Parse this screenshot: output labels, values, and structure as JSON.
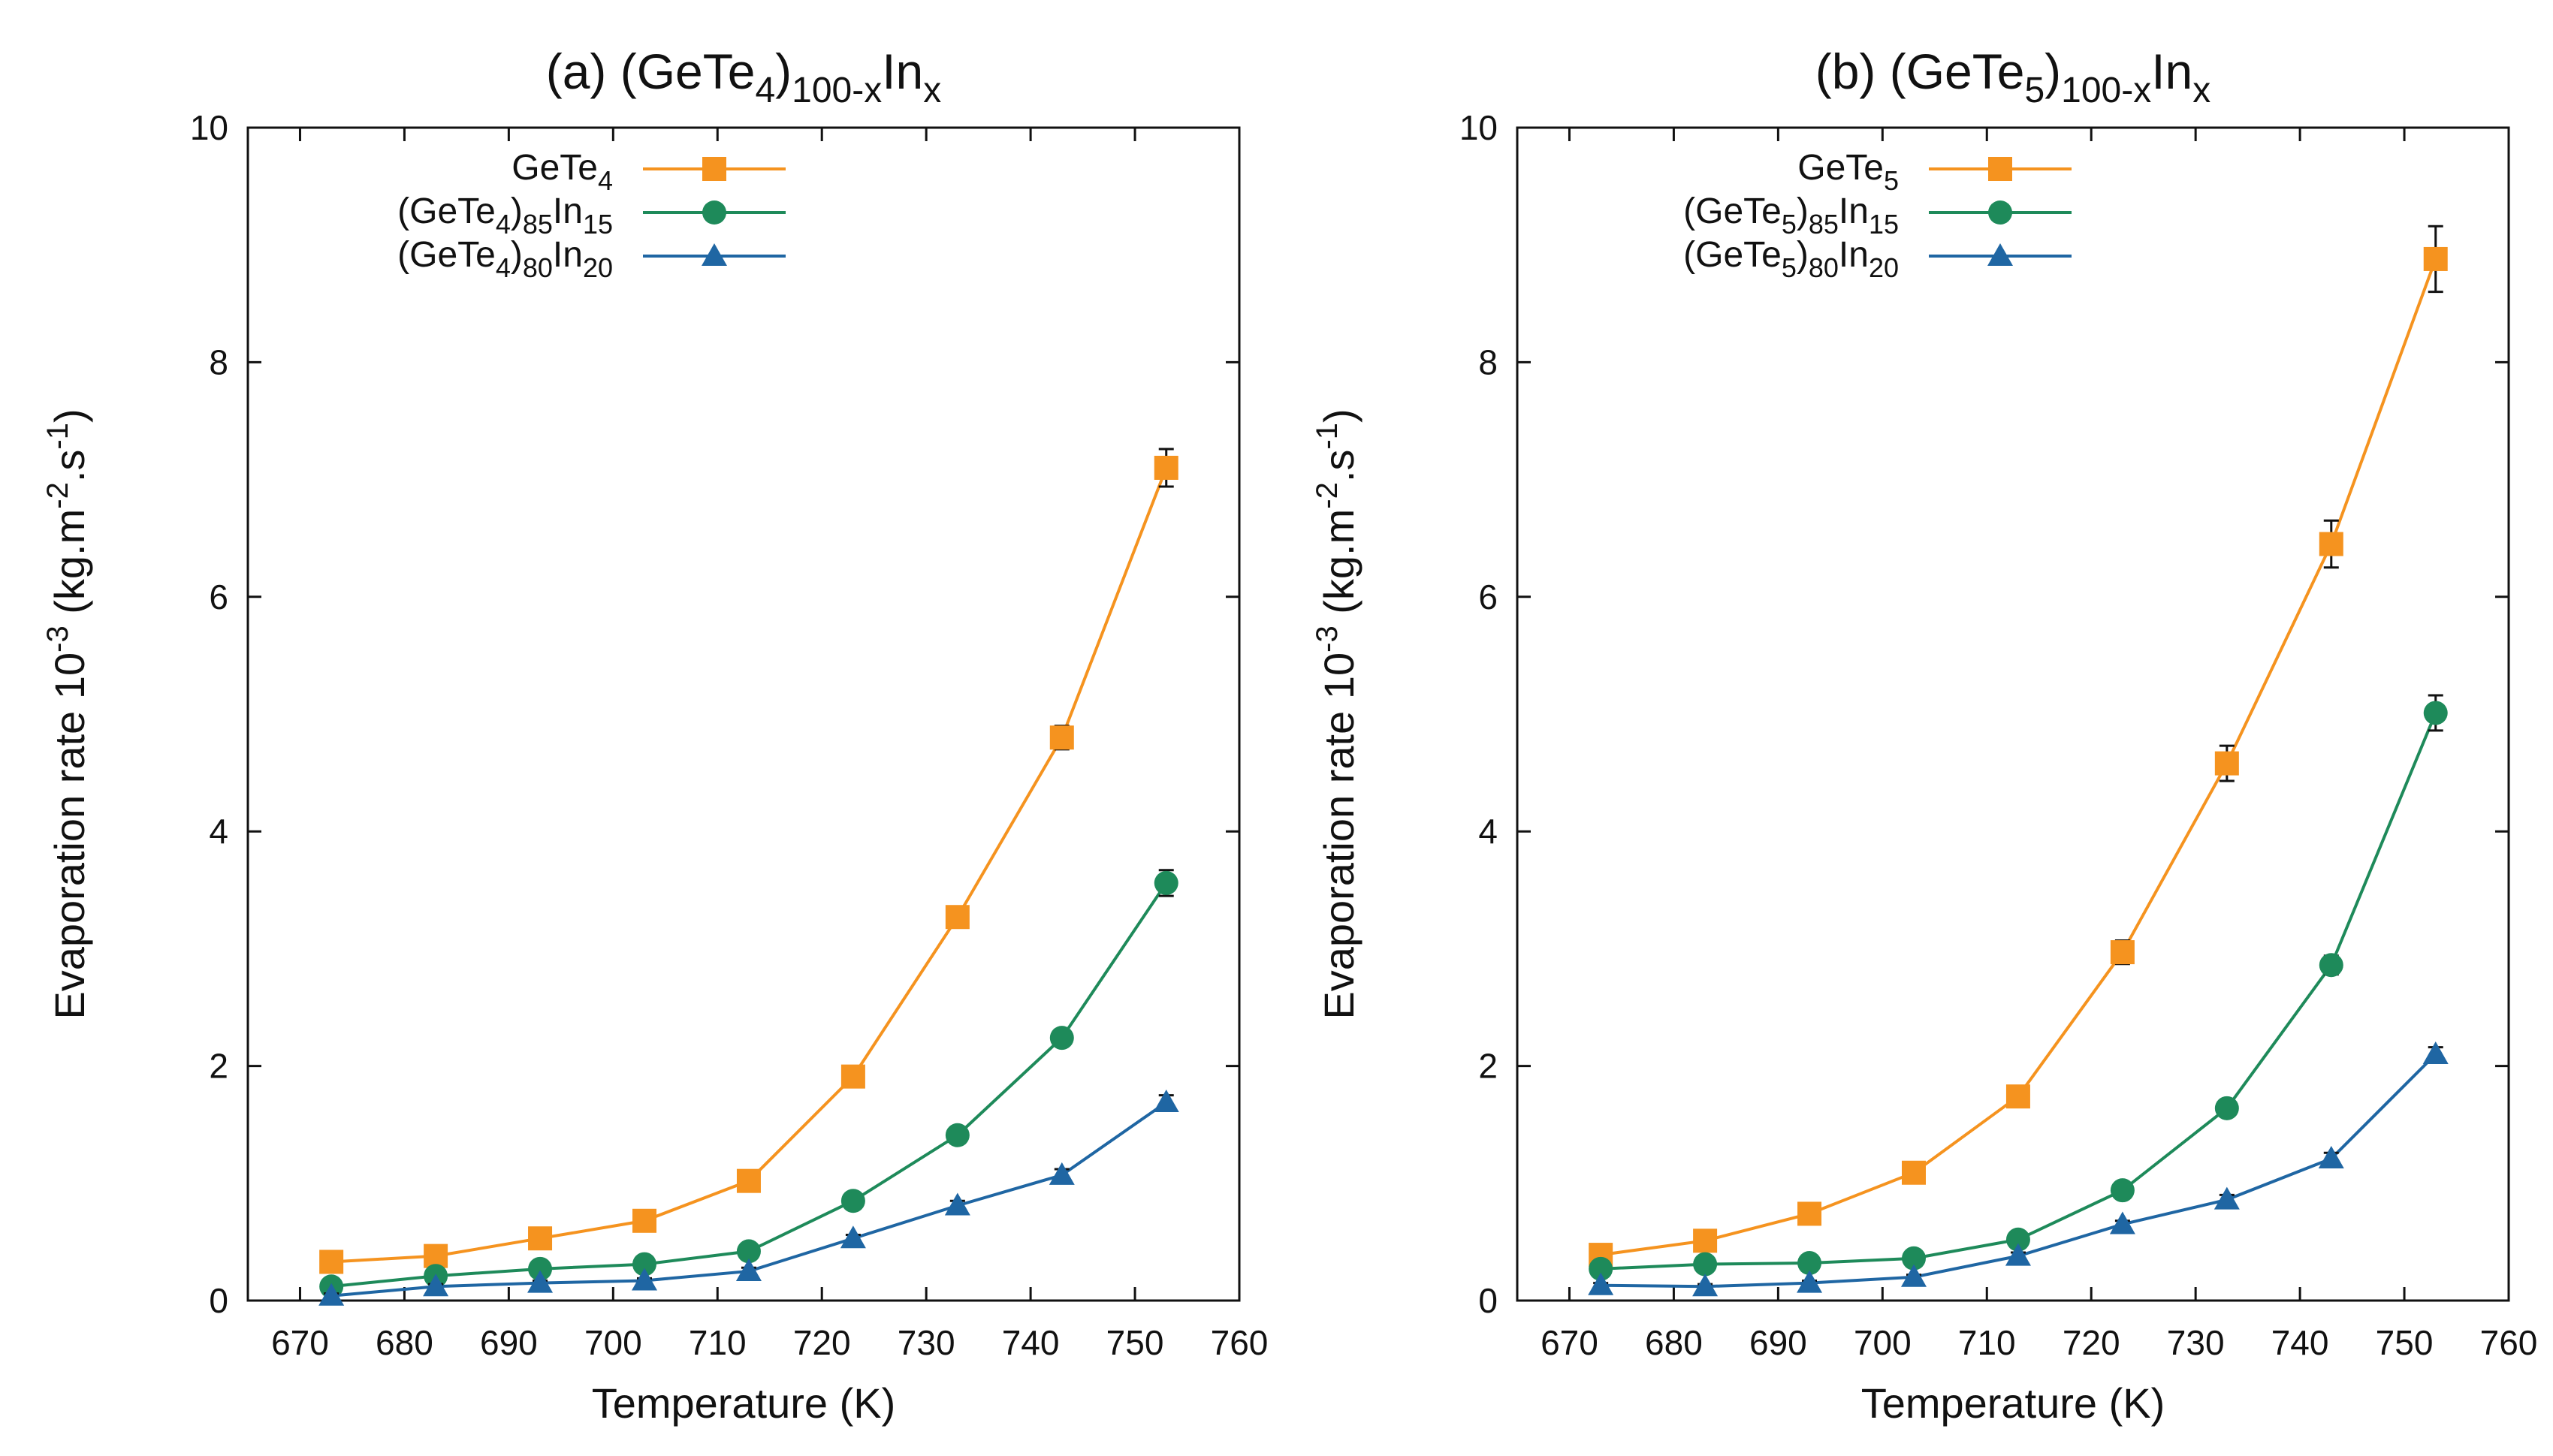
{
  "chart_data": [
    {
      "type": "line",
      "panel": "a",
      "title": {
        "prefix": "(a) (GeTe",
        "sub1": "4",
        "mid": ")",
        "sub2": "100-x",
        "base": "In",
        "sub3": "x"
      },
      "xlabel": "Temperature (K)",
      "ylabel": {
        "main": "Evaporation rate 10",
        "exp": "-3",
        "open": " (kg.m",
        "exp2": "-2",
        "dot": ".s",
        "exp3": "-1",
        "close": ")"
      },
      "xlim": [
        665,
        760
      ],
      "ylim": [
        0,
        10
      ],
      "xticks": [
        670,
        680,
        690,
        700,
        710,
        720,
        730,
        740,
        750,
        760
      ],
      "yticks": [
        0,
        2,
        4,
        6,
        8,
        10
      ],
      "x": [
        673,
        683,
        693,
        703,
        713,
        723,
        733,
        743,
        753
      ],
      "series": [
        {
          "name": {
            "base": "GeTe",
            "s1": "4",
            "rest": "",
            "s2": "",
            "tail": "",
            "s3": ""
          },
          "color": "#f5931f",
          "marker": "square",
          "values": [
            0.33,
            0.38,
            0.53,
            0.68,
            1.02,
            1.91,
            3.27,
            4.8,
            7.1
          ],
          "errors": [
            0.05,
            0.05,
            0.06,
            0.06,
            0.07,
            0.07,
            0.08,
            0.1,
            0.16
          ]
        },
        {
          "name": {
            "base": "(GeTe",
            "s1": "4",
            "rest": ")",
            "s2": "85",
            "tail": "In",
            "s3": "15"
          },
          "color": "#1e8a5a",
          "marker": "circle",
          "values": [
            0.12,
            0.21,
            0.27,
            0.31,
            0.42,
            0.85,
            1.41,
            2.24,
            3.56
          ],
          "errors": [
            0.03,
            0.03,
            0.03,
            0.03,
            0.04,
            0.05,
            0.06,
            0.07,
            0.11
          ]
        },
        {
          "name": {
            "base": "(GeTe",
            "s1": "4",
            "rest": ")",
            "s2": "80",
            "tail": "In",
            "s3": "20"
          },
          "color": "#1f66a3",
          "marker": "triangle",
          "values": [
            0.04,
            0.12,
            0.15,
            0.17,
            0.25,
            0.53,
            0.81,
            1.07,
            1.69
          ],
          "errors": [
            0.02,
            0.02,
            0.02,
            0.02,
            0.03,
            0.03,
            0.04,
            0.05,
            0.06
          ]
        }
      ]
    },
    {
      "type": "line",
      "panel": "b",
      "title": {
        "prefix": "(b) (GeTe",
        "sub1": "5",
        "mid": ")",
        "sub2": "100-x",
        "base": "In",
        "sub3": "x"
      },
      "xlabel": "Temperature (K)",
      "ylabel": {
        "main": "Evaporation rate 10",
        "exp": "-3",
        "open": " (kg.m",
        "exp2": "-2",
        "dot": ".s",
        "exp3": "-1",
        "close": ")"
      },
      "xlim": [
        665,
        760
      ],
      "ylim": [
        0,
        10
      ],
      "xticks": [
        670,
        680,
        690,
        700,
        710,
        720,
        730,
        740,
        750,
        760
      ],
      "yticks": [
        0,
        2,
        4,
        6,
        8,
        10
      ],
      "x": [
        673,
        683,
        693,
        703,
        713,
        723,
        733,
        743,
        753
      ],
      "series": [
        {
          "name": {
            "base": "GeTe",
            "s1": "5",
            "rest": "",
            "s2": "",
            "tail": "",
            "s3": ""
          },
          "color": "#f5931f",
          "marker": "square",
          "values": [
            0.39,
            0.51,
            0.74,
            1.09,
            1.74,
            2.97,
            4.58,
            6.45,
            8.88
          ],
          "errors": [
            0.05,
            0.05,
            0.06,
            0.06,
            0.07,
            0.1,
            0.15,
            0.2,
            0.28
          ]
        },
        {
          "name": {
            "base": "(GeTe",
            "s1": "5",
            "rest": ")",
            "s2": "85",
            "tail": "In",
            "s3": "15"
          },
          "color": "#1e8a5a",
          "marker": "circle",
          "values": [
            0.27,
            0.31,
            0.32,
            0.36,
            0.52,
            0.94,
            1.64,
            2.86,
            5.01
          ],
          "errors": [
            0.03,
            0.03,
            0.03,
            0.03,
            0.04,
            0.05,
            0.06,
            0.08,
            0.15
          ]
        },
        {
          "name": {
            "base": "(GeTe",
            "s1": "5",
            "rest": ")",
            "s2": "80",
            "tail": "In",
            "s3": "20"
          },
          "color": "#1f66a3",
          "marker": "triangle",
          "values": [
            0.13,
            0.12,
            0.15,
            0.2,
            0.38,
            0.65,
            0.86,
            1.21,
            2.1
          ],
          "errors": [
            0.02,
            0.02,
            0.02,
            0.02,
            0.03,
            0.03,
            0.04,
            0.05,
            0.06
          ]
        }
      ]
    }
  ]
}
